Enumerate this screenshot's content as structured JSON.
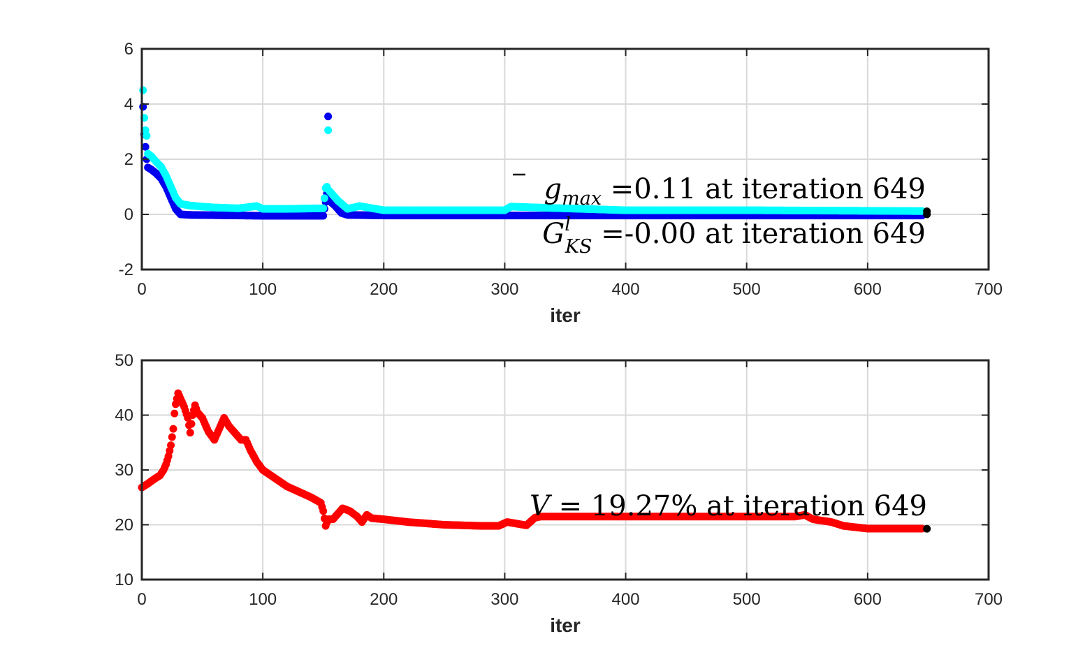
{
  "figure": {
    "colors": {
      "g_max": "#00ffff",
      "G_KS": "#0000ee",
      "volume": "#ff0000",
      "marker": "#000000",
      "axis": "#262626",
      "grid": "#d9d9d9"
    }
  },
  "chart_data": [
    {
      "type": "scatter",
      "xlabel": "iter",
      "xlim": [
        0,
        700
      ],
      "ylim": [
        -2,
        6
      ],
      "xticks": [
        "0",
        "100",
        "200",
        "300",
        "400",
        "500",
        "600",
        "700"
      ],
      "yticks": [
        "-2",
        "0",
        "2",
        "4",
        "6"
      ],
      "grid": true,
      "annotations": [
        {
          "symbol": "g",
          "subscript": "max",
          "text": " =0.11 at iteration 649"
        },
        {
          "symbol": "G",
          "superscript": "l",
          "subscript": "KS",
          "text": " =-0.00 at iteration 649"
        }
      ],
      "series": [
        {
          "color": "#0000ee",
          "points": [
            [
              1,
              3.9
            ],
            [
              2,
              2.9
            ],
            [
              3,
              2.45
            ],
            [
              4,
              2.0
            ],
            [
              5,
              1.7
            ],
            [
              8,
              1.62
            ],
            [
              12,
              1.48
            ],
            [
              16,
              1.3
            ],
            [
              20,
              1.0
            ],
            [
              24,
              0.6
            ],
            [
              28,
              0.2
            ],
            [
              32,
              0.0
            ],
            [
              40,
              -0.02
            ],
            [
              60,
              -0.03
            ],
            [
              80,
              -0.04
            ],
            [
              100,
              -0.05
            ],
            [
              120,
              -0.05
            ],
            [
              150,
              -0.05
            ],
            [
              152,
              0.45
            ],
            [
              153,
              0.75
            ],
            [
              154,
              3.55
            ],
            [
              155,
              0.5
            ],
            [
              160,
              0.3
            ],
            [
              165,
              0.05
            ],
            [
              170,
              -0.02
            ],
            [
              200,
              -0.04
            ],
            [
              300,
              -0.04
            ],
            [
              400,
              -0.04
            ],
            [
              500,
              -0.04
            ],
            [
              600,
              -0.04
            ],
            [
              645,
              -0.04
            ]
          ]
        },
        {
          "color": "#00ffff",
          "points": [
            [
              1,
              4.5
            ],
            [
              2,
              3.5
            ],
            [
              3,
              3.05
            ],
            [
              4,
              2.85
            ],
            [
              5,
              2.2
            ],
            [
              8,
              2.1
            ],
            [
              12,
              1.9
            ],
            [
              16,
              1.72
            ],
            [
              20,
              1.4
            ],
            [
              24,
              1.0
            ],
            [
              28,
              0.6
            ],
            [
              32,
              0.38
            ],
            [
              40,
              0.32
            ],
            [
              50,
              0.28
            ],
            [
              60,
              0.25
            ],
            [
              80,
              0.22
            ],
            [
              95,
              0.3
            ],
            [
              100,
              0.2
            ],
            [
              120,
              0.2
            ],
            [
              150,
              0.22
            ],
            [
              152,
              0.95
            ],
            [
              153,
              1.0
            ],
            [
              154,
              3.05
            ],
            [
              155,
              0.85
            ],
            [
              158,
              0.7
            ],
            [
              162,
              0.5
            ],
            [
              170,
              0.2
            ],
            [
              180,
              0.3
            ],
            [
              200,
              0.15
            ],
            [
              300,
              0.15
            ],
            [
              305,
              0.28
            ],
            [
              400,
              0.15
            ],
            [
              500,
              0.15
            ],
            [
              600,
              0.13
            ],
            [
              645,
              0.12
            ]
          ]
        },
        {
          "color": "#000000",
          "points": [
            [
              649,
              0.11
            ],
            [
              649,
              -0.0
            ]
          ]
        }
      ]
    },
    {
      "type": "scatter",
      "xlabel": "iter",
      "xlim": [
        0,
        700
      ],
      "ylim": [
        10,
        50
      ],
      "xticks": [
        "0",
        "100",
        "200",
        "300",
        "400",
        "500",
        "600",
        "700"
      ],
      "yticks": [
        "10",
        "20",
        "30",
        "40",
        "50"
      ],
      "grid": true,
      "annotations": [
        {
          "symbol": "V",
          "text": " = 19.27% at iteration 649"
        }
      ],
      "series": [
        {
          "color": "#ff0000",
          "points": [
            [
              0,
              26.8
            ],
            [
              5,
              27.5
            ],
            [
              10,
              28.3
            ],
            [
              15,
              29.0
            ],
            [
              18,
              30.0
            ],
            [
              20,
              31.0
            ],
            [
              22,
              32.5
            ],
            [
              24,
              34.5
            ],
            [
              26,
              37.5
            ],
            [
              27,
              40.3
            ],
            [
              28,
              42.0
            ],
            [
              30,
              44.0
            ],
            [
              32,
              43.0
            ],
            [
              35,
              41.5
            ],
            [
              38,
              39.5
            ],
            [
              40,
              36.8
            ],
            [
              42,
              40.0
            ],
            [
              44,
              41.8
            ],
            [
              46,
              40.5
            ],
            [
              50,
              39.5
            ],
            [
              55,
              37.0
            ],
            [
              60,
              35.5
            ],
            [
              63,
              37.0
            ],
            [
              66,
              38.5
            ],
            [
              68,
              39.5
            ],
            [
              72,
              38.0
            ],
            [
              78,
              36.5
            ],
            [
              82,
              35.5
            ],
            [
              86,
              35.5
            ],
            [
              90,
              33.5
            ],
            [
              95,
              31.5
            ],
            [
              100,
              30.0
            ],
            [
              110,
              28.5
            ],
            [
              120,
              27.0
            ],
            [
              130,
              26.0
            ],
            [
              140,
              25.0
            ],
            [
              148,
              24.0
            ],
            [
              150,
              22.5
            ],
            [
              152,
              19.8
            ],
            [
              154,
              21.0
            ],
            [
              158,
              21.0
            ],
            [
              162,
              22.0
            ],
            [
              166,
              23.0
            ],
            [
              172,
              22.5
            ],
            [
              178,
              21.5
            ],
            [
              182,
              20.5
            ],
            [
              186,
              21.8
            ],
            [
              190,
              21.2
            ],
            [
              200,
              21.0
            ],
            [
              220,
              20.5
            ],
            [
              250,
              20.0
            ],
            [
              280,
              19.8
            ],
            [
              295,
              19.8
            ],
            [
              302,
              20.5
            ],
            [
              310,
              20.2
            ],
            [
              318,
              19.9
            ],
            [
              325,
              21.3
            ],
            [
              330,
              21.5
            ],
            [
              350,
              21.5
            ],
            [
              400,
              21.5
            ],
            [
              450,
              21.5
            ],
            [
              500,
              21.5
            ],
            [
              540,
              21.5
            ],
            [
              548,
              21.8
            ],
            [
              555,
              21.0
            ],
            [
              570,
              20.5
            ],
            [
              580,
              19.8
            ],
            [
              600,
              19.3
            ],
            [
              645,
              19.3
            ]
          ]
        },
        {
          "color": "#000000",
          "points": [
            [
              649,
              19.27
            ]
          ]
        }
      ]
    }
  ]
}
